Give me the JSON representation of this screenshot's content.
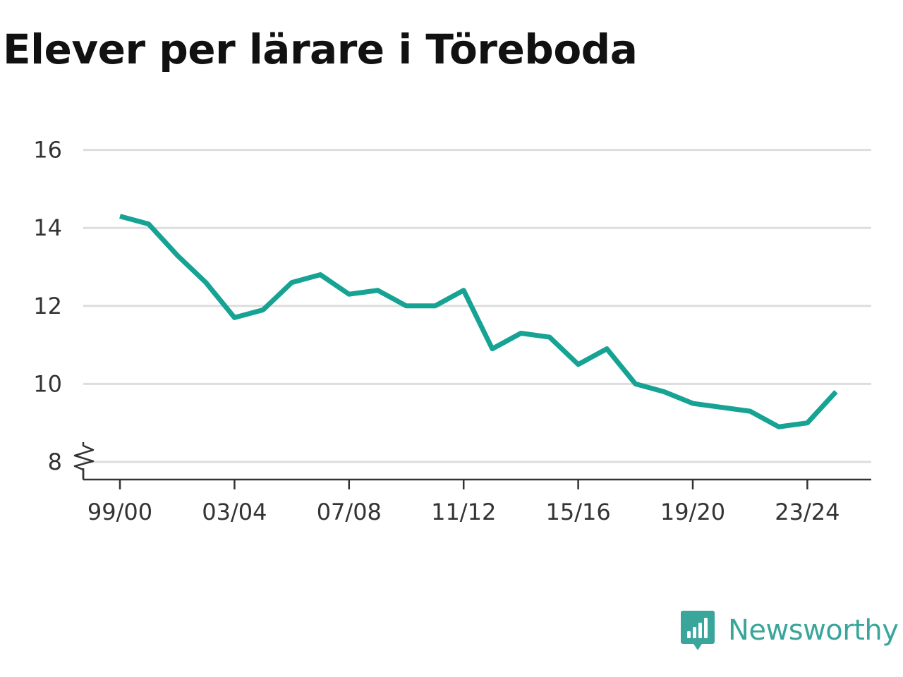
{
  "colors": {
    "line": "#16a394",
    "grid": "#dddddd",
    "axis": "#333333",
    "brand": "#3aa59a"
  },
  "brand": {
    "name": "Newsworthy",
    "icon": "newsworthy-logo-icon"
  },
  "chart_data": {
    "type": "line",
    "title": "Elever per lärare i Töreboda",
    "x": [
      "99/00",
      "00/01",
      "01/02",
      "02/03",
      "03/04",
      "04/05",
      "05/06",
      "06/07",
      "07/08",
      "08/09",
      "09/10",
      "10/11",
      "11/12",
      "12/13",
      "13/14",
      "14/15",
      "15/16",
      "16/17",
      "17/18",
      "18/19",
      "19/20",
      "20/21",
      "21/22",
      "22/23",
      "23/24",
      "24/25"
    ],
    "x_tick_labels": [
      "99/00",
      "03/04",
      "07/08",
      "11/12",
      "15/16",
      "19/20",
      "23/24"
    ],
    "series": [
      {
        "values": [
          14.3,
          14.1,
          13.3,
          12.6,
          11.7,
          11.9,
          12.6,
          12.8,
          12.3,
          12.4,
          12.0,
          12.0,
          12.4,
          10.9,
          11.3,
          11.2,
          10.5,
          10.9,
          10.0,
          9.8,
          9.5,
          9.4,
          9.3,
          8.9,
          9.0,
          9.8
        ]
      }
    ],
    "y_ticks": [
      8,
      10,
      12,
      14,
      16
    ],
    "ylim": [
      8,
      16
    ],
    "y_axis_break": true,
    "grid": true,
    "xlabel": "",
    "ylabel": ""
  }
}
